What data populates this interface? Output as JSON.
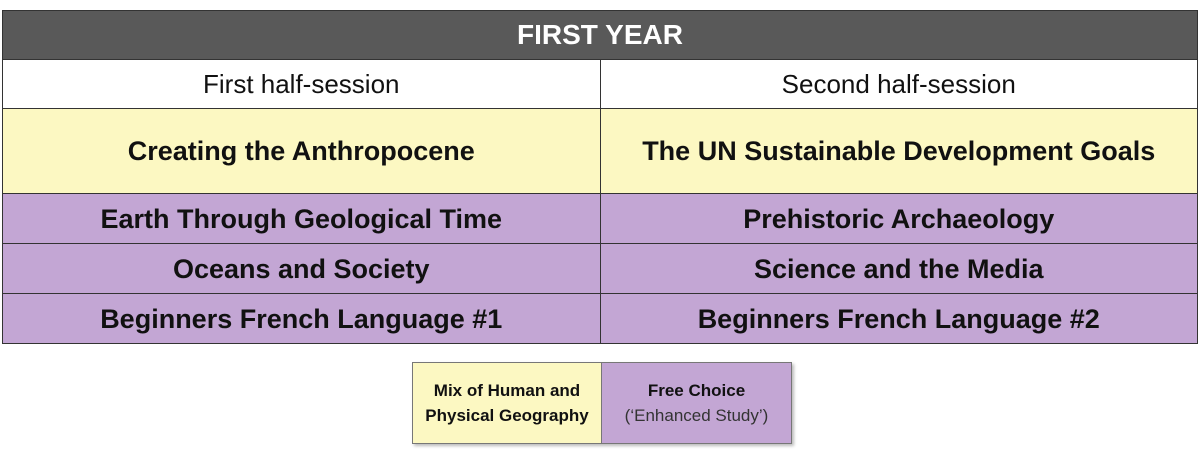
{
  "header": {
    "title": "FIRST YEAR"
  },
  "table": {
    "columns": [
      "First half-session",
      "Second half-session"
    ],
    "rows": [
      [
        "Creating the Anthropocene",
        "The UN Sustainable Development Goals"
      ],
      [
        "Earth Through Geological Time",
        "Prehistoric Archaeology"
      ],
      [
        "Oceans and Society",
        "Science and the Media"
      ],
      [
        "Beginners French Language #1",
        "Beginners French Language #2"
      ]
    ]
  },
  "legend": {
    "items": [
      {
        "label": "Mix of Human and Physical Geography"
      },
      {
        "label": "Free Choice",
        "note": "(‘Enhanced Study’)"
      }
    ]
  }
}
